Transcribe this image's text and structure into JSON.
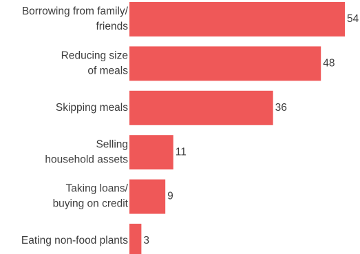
{
  "chart_data": {
    "type": "bar",
    "orientation": "horizontal",
    "categories": [
      [
        "Borrowing from family/",
        "friends"
      ],
      [
        "Reducing size",
        "of meals"
      ],
      [
        "Skipping meals"
      ],
      [
        "Selling",
        "household assets"
      ],
      [
        "Taking loans/",
        "buying on credit"
      ],
      [
        "Eating non-food plants"
      ]
    ],
    "values": [
      54,
      48,
      36,
      11,
      9,
      3
    ],
    "value_labels": [
      "54",
      "48",
      "36",
      "11",
      "9",
      "3"
    ],
    "xlim": [
      0,
      54
    ],
    "bar_color": "#ef5858",
    "text_color": "#3c3c3c",
    "grid": false,
    "legend": "none",
    "title": "",
    "xlabel": "",
    "ylabel": ""
  }
}
